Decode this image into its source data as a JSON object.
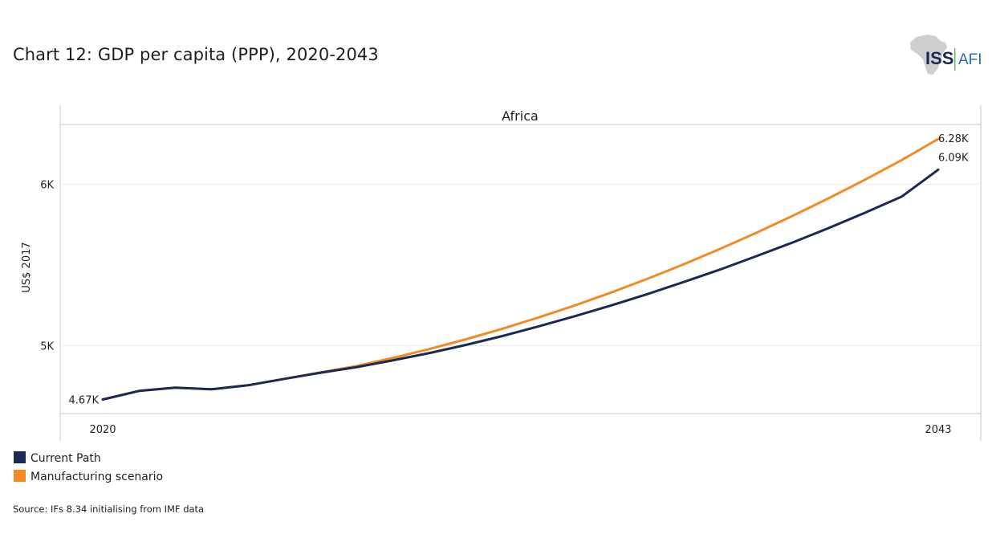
{
  "title": "Chart 12: GDP per capita (PPP), 2020-2043",
  "logo": {
    "left_text": "ISS",
    "right_text": "AFI"
  },
  "source": "Source: IFs 8.34 initialising from IMF data",
  "colors": {
    "current_path": "#1c2957",
    "manufacturing": "#f28b25",
    "grid": "#ececec",
    "frame": "#c9c9c9"
  },
  "chart_data": {
    "type": "line",
    "panel_title": "Africa",
    "ylabel": "US$ 2017",
    "ylim": [
      4580,
      6370
    ],
    "y_ticks": [
      {
        "value": 5000,
        "label": "5K"
      },
      {
        "value": 6000,
        "label": "6K"
      }
    ],
    "x_tick_labels": [
      "2020",
      "2043"
    ],
    "x": [
      2020,
      2021,
      2022,
      2023,
      2024,
      2025,
      2026,
      2027,
      2028,
      2029,
      2030,
      2031,
      2032,
      2033,
      2034,
      2035,
      2036,
      2037,
      2038,
      2039,
      2040,
      2041,
      2042,
      2043
    ],
    "series": [
      {
        "name": "Current Path",
        "color": "#1c2957",
        "values": [
          4667,
          4720,
          4740,
          4730,
          4755,
          4795,
          4833,
          4868,
          4910,
          4955,
          5005,
          5060,
          5120,
          5183,
          5250,
          5320,
          5395,
          5472,
          5555,
          5640,
          5730,
          5825,
          5924,
          6090
        ],
        "start_label": "4.67K",
        "end_label": "6.09K"
      },
      {
        "name": "Manufacturing scenario",
        "color": "#f28b25",
        "values": [
          4667,
          4720,
          4740,
          4730,
          4755,
          4795,
          4835,
          4875,
          4925,
          4980,
          5040,
          5105,
          5175,
          5250,
          5330,
          5415,
          5505,
          5600,
          5700,
          5805,
          5915,
          6030,
          6150,
          6280
        ],
        "start_label": "4.67K",
        "end_label": "6.28K"
      }
    ],
    "legend": [
      "Current Path",
      "Manufacturing scenario"
    ]
  }
}
